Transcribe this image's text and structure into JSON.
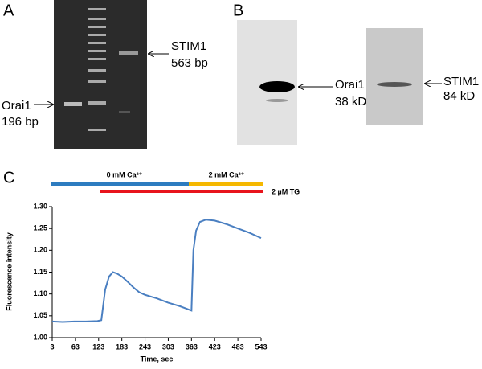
{
  "panel_a": {
    "label": "A",
    "band_left": {
      "name": "Orai1",
      "size": "196 bp"
    },
    "band_right": {
      "name": "STIM1",
      "size": "563 bp"
    }
  },
  "panel_b": {
    "label": "B",
    "blot_left": {
      "name": "Orai1",
      "size": "38 kD"
    },
    "blot_right": {
      "name": "STIM1",
      "size": "84 kD"
    }
  },
  "panel_c": {
    "label": "C",
    "treatments": [
      "0 mM Ca²⁺",
      "2 mM Ca²⁺",
      "2 µM TG"
    ]
  },
  "chart_data": {
    "type": "line",
    "color": "#4a7fc1",
    "x": [
      3,
      30,
      60,
      90,
      120,
      130,
      140,
      150,
      160,
      170,
      183,
      198,
      213,
      228,
      243,
      258,
      273,
      288,
      303,
      318,
      333,
      348,
      360,
      363,
      368,
      375,
      385,
      400,
      423,
      453,
      483,
      513,
      543
    ],
    "values": [
      1.037,
      1.036,
      1.037,
      1.037,
      1.038,
      1.04,
      1.11,
      1.14,
      1.15,
      1.147,
      1.14,
      1.128,
      1.115,
      1.104,
      1.098,
      1.094,
      1.09,
      1.085,
      1.08,
      1.076,
      1.072,
      1.067,
      1.063,
      1.062,
      1.2,
      1.245,
      1.265,
      1.27,
      1.268,
      1.26,
      1.25,
      1.24,
      1.228
    ],
    "xlim": [
      3,
      543
    ],
    "xticks": [
      3,
      63,
      123,
      183,
      243,
      303,
      363,
      423,
      483,
      543
    ],
    "ylim": [
      1.0,
      1.3
    ],
    "yticks": [
      {
        "value": 1.0,
        "label": "1.00"
      },
      {
        "value": 1.05,
        "label": "1.05"
      },
      {
        "value": 1.1,
        "label": "1.10"
      },
      {
        "value": 1.15,
        "label": "1.15"
      },
      {
        "value": 1.2,
        "label": "1.20"
      },
      {
        "value": 1.25,
        "label": "1.25"
      },
      {
        "value": 1.3,
        "label": "1.30"
      }
    ],
    "xlabel": "Time, sec",
    "ylabel": "Fluorescence intensity"
  }
}
